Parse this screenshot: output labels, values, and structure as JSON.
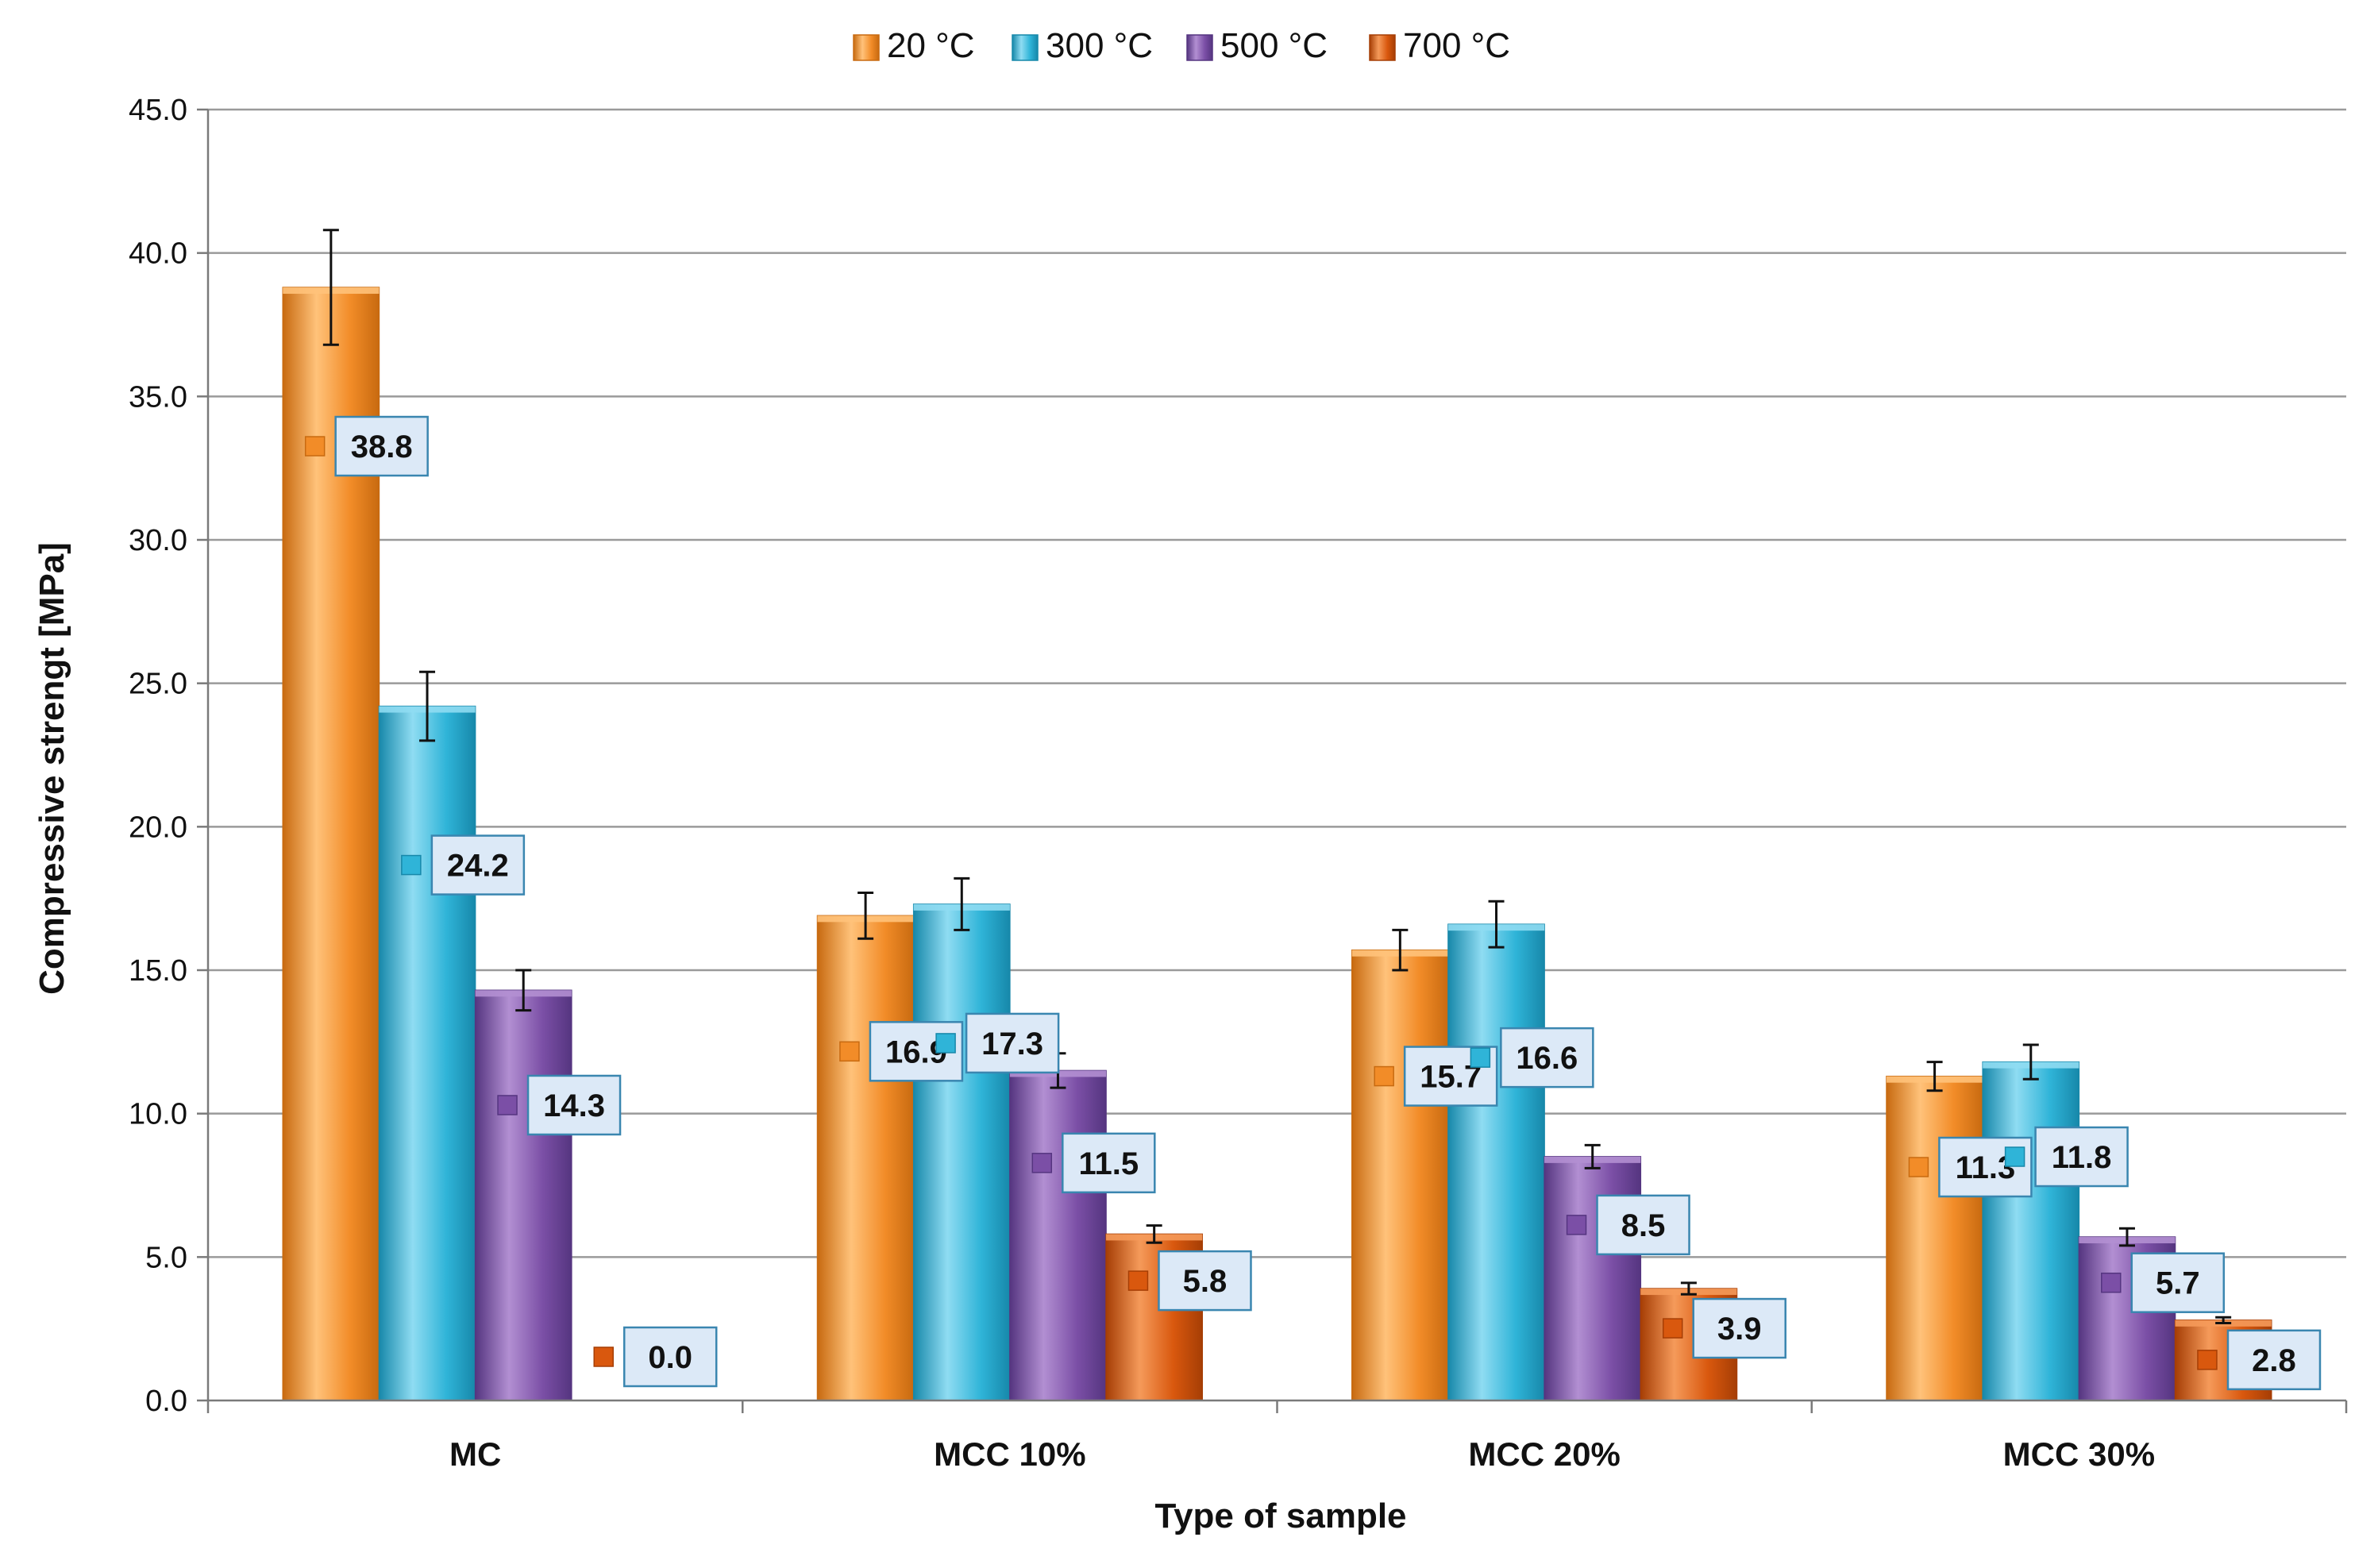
{
  "chart_data": {
    "type": "bar",
    "title": "",
    "xlabel": "Type of sample",
    "ylabel": "Compressive strengt [MPa]",
    "ylim": [
      0,
      45
    ],
    "yticks": [
      "0.0",
      "5.0",
      "10.0",
      "15.0",
      "20.0",
      "25.0",
      "30.0",
      "35.0",
      "40.0",
      "45.0"
    ],
    "categories": [
      "MC",
      "MCC 10%",
      "MCC 20%",
      "MCC 30%"
    ],
    "grid": true,
    "legend_position": "top-center",
    "series": [
      {
        "name": "20 °C",
        "color": "#f28c28",
        "light": "#ffc27a",
        "dark": "#c86a10",
        "values": [
          38.8,
          16.9,
          15.7,
          11.3
        ],
        "labels": [
          "38.8",
          "16.9",
          "15.7",
          "11.3"
        ],
        "errors": [
          2.0,
          0.8,
          0.7,
          0.5
        ]
      },
      {
        "name": "300 °C",
        "color": "#2fb4d8",
        "light": "#8fdcf2",
        "dark": "#1788aa",
        "values": [
          24.2,
          17.3,
          16.6,
          11.8
        ],
        "labels": [
          "24.2",
          "17.3",
          "16.6",
          "11.8"
        ],
        "errors": [
          1.2,
          0.9,
          0.8,
          0.6
        ]
      },
      {
        "name": "500 °C",
        "color": "#7b4fa6",
        "light": "#b28fd2",
        "dark": "#553580",
        "values": [
          14.3,
          11.5,
          8.5,
          5.7
        ],
        "labels": [
          "14.3",
          "11.5",
          "8.5",
          "5.7"
        ],
        "errors": [
          0.7,
          0.6,
          0.4,
          0.3
        ]
      },
      {
        "name": "700 °C",
        "color": "#d9580e",
        "light": "#f59a5a",
        "dark": "#a63e05",
        "values": [
          0.0,
          5.8,
          3.9,
          2.8
        ],
        "labels": [
          "0.0",
          "5.8",
          "3.9",
          "2.8"
        ],
        "errors": [
          0.0,
          0.3,
          0.2,
          0.1
        ]
      }
    ]
  }
}
